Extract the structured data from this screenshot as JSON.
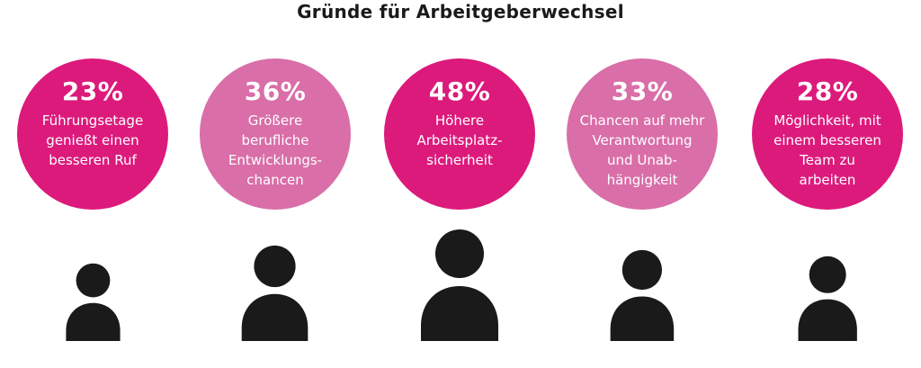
{
  "colors": {
    "dark": "#dc1a7c",
    "light": "#d96ea8",
    "person": "#1a1a1a"
  },
  "chart_data": {
    "type": "bar",
    "title": "Gründe für Arbeitgeberwechsel",
    "unit": "%",
    "items": [
      {
        "value": 23,
        "display": "23%",
        "label": "Führungsetage genießt einen besseren Ruf",
        "label_lines": [
          "Führungsetage",
          "genießt einen",
          "besseren Ruf"
        ],
        "tone": "dark"
      },
      {
        "value": 36,
        "display": "36%",
        "label": "Größere berufliche Entwicklungschancen",
        "label_lines": [
          "Größere",
          "berufliche",
          "Entwicklungs-",
          "chancen"
        ],
        "tone": "light"
      },
      {
        "value": 48,
        "display": "48%",
        "label": "Höhere Arbeitsplatzsicherheit",
        "label_lines": [
          "Höhere",
          "Arbeitsplatz-",
          "sicherheit"
        ],
        "tone": "dark"
      },
      {
        "value": 33,
        "display": "33%",
        "label": "Chancen auf mehr Verantwortung und Unabhängigkeit",
        "label_lines": [
          "Chancen auf mehr",
          "Verantwortung",
          "und Unab-",
          "hängigkeit"
        ],
        "tone": "light"
      },
      {
        "value": 28,
        "display": "28%",
        "label": "Möglichkeit, mit einem besseren Team zu arbeiten",
        "label_lines": [
          "Möglichkeit, mit",
          "einem besseren",
          "Team zu",
          "arbeiten"
        ],
        "tone": "dark"
      }
    ]
  }
}
